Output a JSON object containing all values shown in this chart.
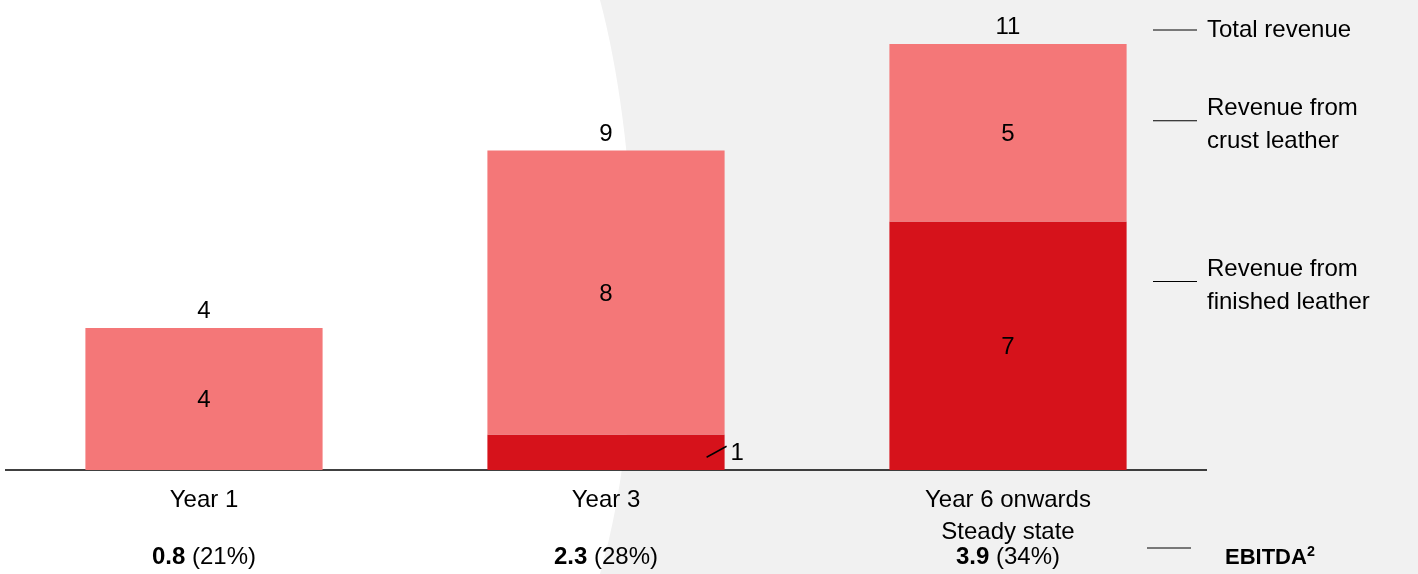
{
  "chart_data": {
    "type": "bar",
    "stacked": true,
    "data_labels": true,
    "legend": "right",
    "categories": [
      "Year 1",
      "Year 3",
      "Year 6 onwards\nSteady state"
    ],
    "series": [
      {
        "name": "Revenue from finished leather",
        "color": "#d6121b",
        "values": [
          null,
          1,
          7
        ]
      },
      {
        "name": "Revenue from crust leather",
        "color": "#f47778",
        "values": [
          4,
          8,
          5
        ]
      }
    ],
    "totals": [
      "4",
      "9",
      "11"
    ],
    "annotations": [
      "Total revenue",
      "0.8 (21%)",
      "2.3 (28%)",
      "3.9 (34%)",
      "EBITDA$^{2}$"
    ]
  }
}
